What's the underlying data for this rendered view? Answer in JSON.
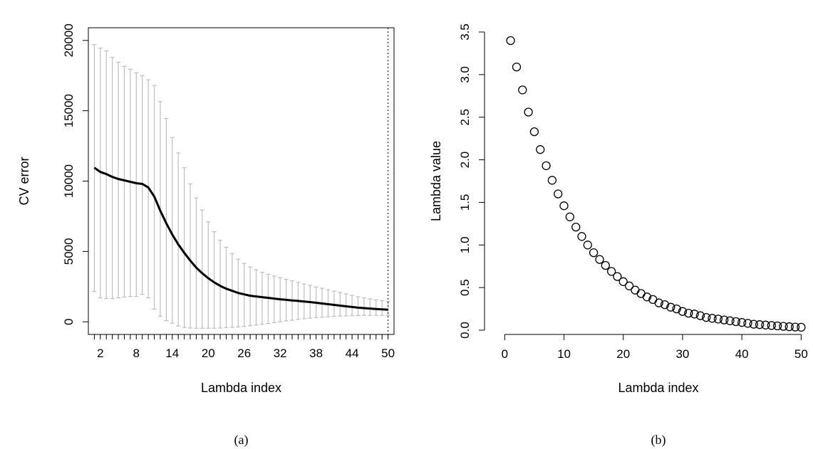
{
  "chart_data": [
    {
      "type": "line",
      "caption": "(a)",
      "xlabel": "Lambda index",
      "ylabel": "CV error",
      "xlim": [
        0,
        51
      ],
      "ylim": [
        -900,
        20900
      ],
      "x_ticks": [
        2,
        8,
        14,
        20,
        26,
        32,
        38,
        44,
        50
      ],
      "x_tick_labels": [
        "2",
        "8",
        "14",
        "20",
        "26",
        "32",
        "38",
        "44",
        "50"
      ],
      "y_ticks": [
        0,
        5000,
        10000,
        15000,
        20000
      ],
      "y_tick_labels": [
        "0",
        "5000",
        "10000",
        "15000",
        "20000"
      ],
      "selected_lambda_index": 50,
      "error_bar_color": "#bebebe",
      "line_color": "#000000",
      "series": [
        {
          "x": [
            1,
            2,
            3,
            4,
            5,
            6,
            7,
            8,
            9,
            10,
            11,
            12,
            13,
            14,
            15,
            16,
            17,
            18,
            19,
            20,
            21,
            22,
            23,
            24,
            25,
            26,
            27,
            28,
            29,
            30,
            31,
            32,
            33,
            34,
            35,
            36,
            37,
            38,
            39,
            40,
            41,
            42,
            43,
            44,
            45,
            46,
            47,
            48,
            49,
            50
          ],
          "y": [
            10950,
            10650,
            10500,
            10300,
            10150,
            10050,
            9950,
            9850,
            9800,
            9550,
            8900,
            7900,
            7000,
            6200,
            5500,
            4900,
            4350,
            3850,
            3450,
            3100,
            2800,
            2550,
            2350,
            2200,
            2050,
            1950,
            1850,
            1800,
            1750,
            1700,
            1650,
            1600,
            1560,
            1520,
            1480,
            1440,
            1400,
            1350,
            1300,
            1250,
            1200,
            1150,
            1100,
            1050,
            1000,
            970,
            940,
            910,
            880,
            860
          ],
          "lower": [
            2150,
            1700,
            1650,
            1650,
            1700,
            1750,
            1800,
            1800,
            1950,
            1700,
            900,
            400,
            80,
            -100,
            -300,
            -400,
            -440,
            -460,
            -460,
            -460,
            -460,
            -440,
            -420,
            -400,
            -370,
            -330,
            -280,
            -230,
            -180,
            -120,
            -60,
            0,
            60,
            110,
            170,
            220,
            260,
            300,
            330,
            360,
            390,
            410,
            420,
            430,
            440,
            450,
            455,
            460,
            460,
            460
          ],
          "upper": [
            19700,
            19450,
            19250,
            18800,
            18450,
            18150,
            17950,
            17700,
            17500,
            17200,
            16800,
            15650,
            14450,
            13100,
            12000,
            10950,
            9800,
            8800,
            7950,
            7100,
            6400,
            5800,
            5300,
            4850,
            4450,
            4150,
            3900,
            3700,
            3520,
            3380,
            3250,
            3130,
            3020,
            2910,
            2800,
            2690,
            2590,
            2480,
            2380,
            2280,
            2180,
            2080,
            1980,
            1880,
            1780,
            1700,
            1630,
            1560,
            1500,
            1450
          ]
        }
      ]
    },
    {
      "type": "scatter",
      "caption": "(b)",
      "xlabel": "Lambda index",
      "ylabel": "Lambda value",
      "xlim": [
        -1,
        52
      ],
      "ylim": [
        -0.05,
        3.55
      ],
      "x_ticks": [
        0,
        10,
        20,
        30,
        40,
        50
      ],
      "x_tick_labels": [
        "0",
        "10",
        "20",
        "30",
        "40",
        "50"
      ],
      "y_ticks": [
        0.0,
        0.5,
        1.0,
        1.5,
        2.0,
        2.5,
        3.0,
        3.5
      ],
      "y_tick_labels": [
        "0.0",
        "0.5",
        "1.0",
        "1.5",
        "2.0",
        "2.5",
        "3.0",
        "3.5"
      ],
      "marker": "open-circle",
      "series": [
        {
          "x": [
            1,
            2,
            3,
            4,
            5,
            6,
            7,
            8,
            9,
            10,
            11,
            12,
            13,
            14,
            15,
            16,
            17,
            18,
            19,
            20,
            21,
            22,
            23,
            24,
            25,
            26,
            27,
            28,
            29,
            30,
            31,
            32,
            33,
            34,
            35,
            36,
            37,
            38,
            39,
            40,
            41,
            42,
            43,
            44,
            45,
            46,
            47,
            48,
            49,
            50
          ],
          "y": [
            3.4,
            3.09,
            2.82,
            2.56,
            2.33,
            2.12,
            1.93,
            1.76,
            1.6,
            1.46,
            1.33,
            1.21,
            1.1,
            1.0,
            0.91,
            0.83,
            0.76,
            0.69,
            0.63,
            0.57,
            0.52,
            0.47,
            0.43,
            0.39,
            0.36,
            0.32,
            0.3,
            0.27,
            0.25,
            0.22,
            0.2,
            0.19,
            0.17,
            0.15,
            0.14,
            0.13,
            0.12,
            0.11,
            0.1,
            0.09,
            0.08,
            0.07,
            0.065,
            0.06,
            0.055,
            0.05,
            0.045,
            0.04,
            0.037,
            0.034
          ]
        }
      ]
    }
  ]
}
